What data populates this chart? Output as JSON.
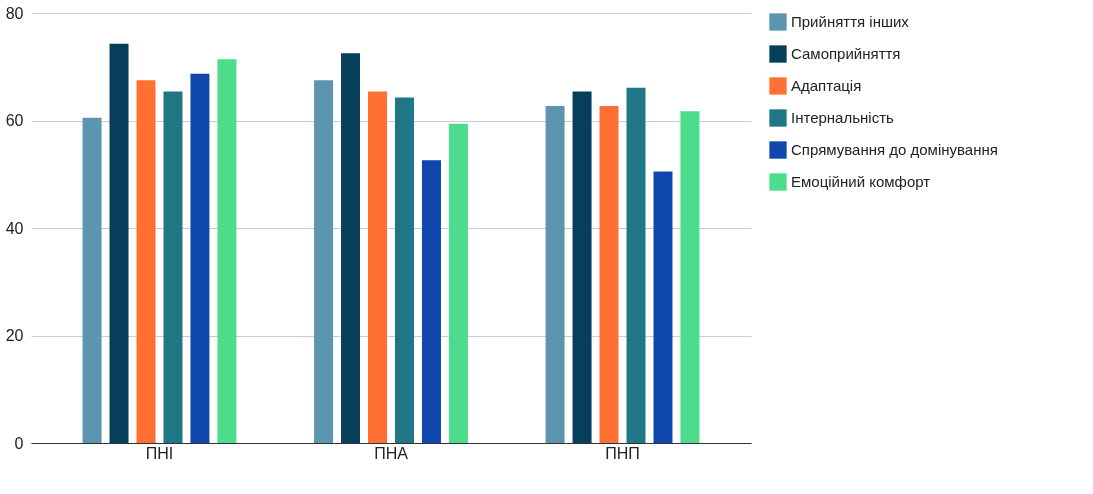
{
  "chart_data": {
    "type": "bar",
    "categories": [
      "ПНІ",
      "ПНА",
      "ПНП"
    ],
    "series": [
      {
        "name": "Прийняття інших",
        "color": "#5b95b0",
        "values": [
          60.5,
          67.5,
          62.7
        ]
      },
      {
        "name": "Самоприйняття",
        "color": "#073f5a",
        "values": [
          74.3,
          72.5,
          65.4
        ]
      },
      {
        "name": "Адаптація",
        "color": "#ff7032",
        "values": [
          67.5,
          65.4,
          62.7
        ]
      },
      {
        "name": "Інтернальність",
        "color": "#1f7785",
        "values": [
          65.4,
          64.3,
          66.1
        ]
      },
      {
        "name": "Спрямування до домінування",
        "color": "#0f47af",
        "values": [
          68.7,
          52.6,
          50.5
        ]
      },
      {
        "name": "Емоційний комфорт",
        "color": "#4cdc8b",
        "values": [
          71.4,
          59.4,
          61.7
        ]
      }
    ],
    "ylim": [
      0,
      80
    ],
    "yticks": [
      0,
      20,
      40,
      60,
      80
    ],
    "grid": "y",
    "legend": "right"
  }
}
